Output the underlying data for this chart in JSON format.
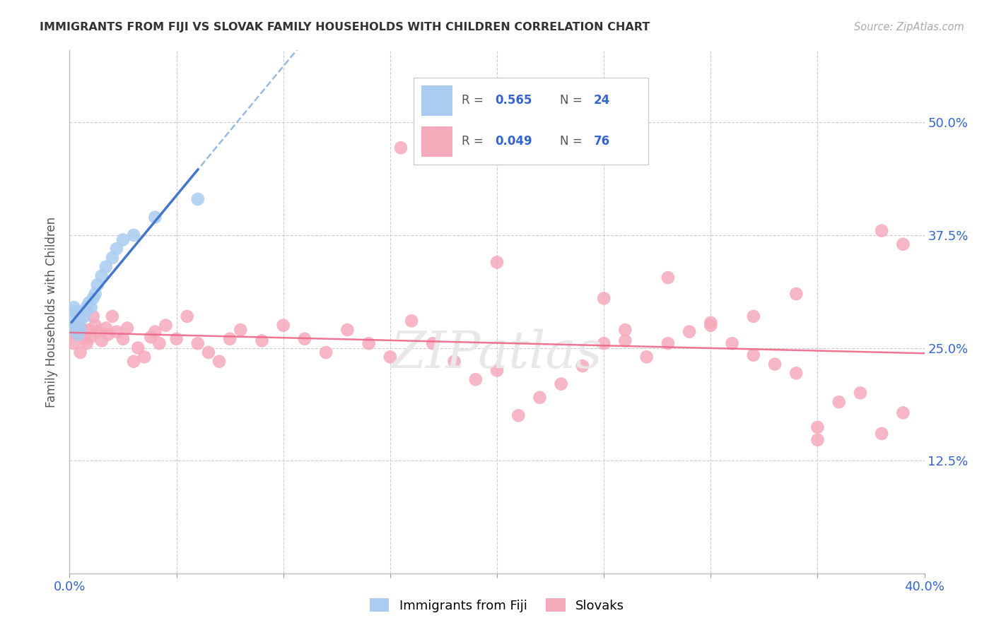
{
  "title": "IMMIGRANTS FROM FIJI VS SLOVAK FAMILY HOUSEHOLDS WITH CHILDREN CORRELATION CHART",
  "source": "Source: ZipAtlas.com",
  "ylabel": "Family Households with Children",
  "xlim": [
    0.0,
    0.4
  ],
  "ylim": [
    0.0,
    0.58
  ],
  "fiji_color": "#aaccf0",
  "fiji_line_color": "#4477cc",
  "fiji_line_dash_color": "#99bbdd",
  "slovak_color": "#f5aabb",
  "slovak_line_color": "#ee6688",
  "fiji_R": "0.565",
  "fiji_N": "24",
  "slovak_R": "0.049",
  "slovak_N": "76",
  "fiji_x": [
    0.001,
    0.002,
    0.002,
    0.003,
    0.003,
    0.004,
    0.005,
    0.005,
    0.006,
    0.007,
    0.008,
    0.009,
    0.01,
    0.011,
    0.012,
    0.013,
    0.015,
    0.017,
    0.02,
    0.022,
    0.025,
    0.03,
    0.04,
    0.06
  ],
  "fiji_y": [
    0.285,
    0.295,
    0.27,
    0.29,
    0.275,
    0.265,
    0.28,
    0.27,
    0.29,
    0.285,
    0.295,
    0.3,
    0.295,
    0.305,
    0.31,
    0.32,
    0.33,
    0.34,
    0.35,
    0.36,
    0.37,
    0.375,
    0.395,
    0.415
  ],
  "slovak_x": [
    0.001,
    0.002,
    0.003,
    0.004,
    0.005,
    0.006,
    0.007,
    0.008,
    0.009,
    0.01,
    0.011,
    0.012,
    0.013,
    0.015,
    0.017,
    0.018,
    0.02,
    0.022,
    0.025,
    0.027,
    0.03,
    0.032,
    0.035,
    0.038,
    0.04,
    0.042,
    0.045,
    0.05,
    0.055,
    0.06,
    0.065,
    0.07,
    0.075,
    0.08,
    0.09,
    0.1,
    0.11,
    0.12,
    0.13,
    0.14,
    0.15,
    0.16,
    0.17,
    0.18,
    0.19,
    0.2,
    0.21,
    0.22,
    0.23,
    0.24,
    0.25,
    0.26,
    0.27,
    0.28,
    0.29,
    0.3,
    0.31,
    0.32,
    0.33,
    0.34,
    0.35,
    0.36,
    0.37,
    0.38,
    0.39,
    0.155,
    0.2,
    0.25,
    0.28,
    0.32,
    0.35,
    0.38,
    0.39,
    0.26,
    0.3,
    0.34
  ],
  "slovak_y": [
    0.27,
    0.255,
    0.265,
    0.275,
    0.245,
    0.27,
    0.26,
    0.255,
    0.27,
    0.262,
    0.285,
    0.275,
    0.268,
    0.258,
    0.272,
    0.265,
    0.285,
    0.268,
    0.26,
    0.272,
    0.235,
    0.25,
    0.24,
    0.262,
    0.268,
    0.255,
    0.275,
    0.26,
    0.285,
    0.255,
    0.245,
    0.235,
    0.26,
    0.27,
    0.258,
    0.275,
    0.26,
    0.245,
    0.27,
    0.255,
    0.24,
    0.28,
    0.255,
    0.235,
    0.215,
    0.225,
    0.175,
    0.195,
    0.21,
    0.23,
    0.255,
    0.27,
    0.24,
    0.255,
    0.268,
    0.278,
    0.255,
    0.242,
    0.232,
    0.222,
    0.162,
    0.19,
    0.2,
    0.155,
    0.178,
    0.472,
    0.345,
    0.305,
    0.328,
    0.285,
    0.148,
    0.38,
    0.365,
    0.258,
    0.275,
    0.31
  ],
  "watermark": "ZIPatlas",
  "legend_R_label": "R = ",
  "legend_N_label": "N = ",
  "grid_color": "#cccccc",
  "tick_color": "#3366cc",
  "title_color": "#333333",
  "source_color": "#aaaaaa",
  "ylabel_color": "#555555"
}
